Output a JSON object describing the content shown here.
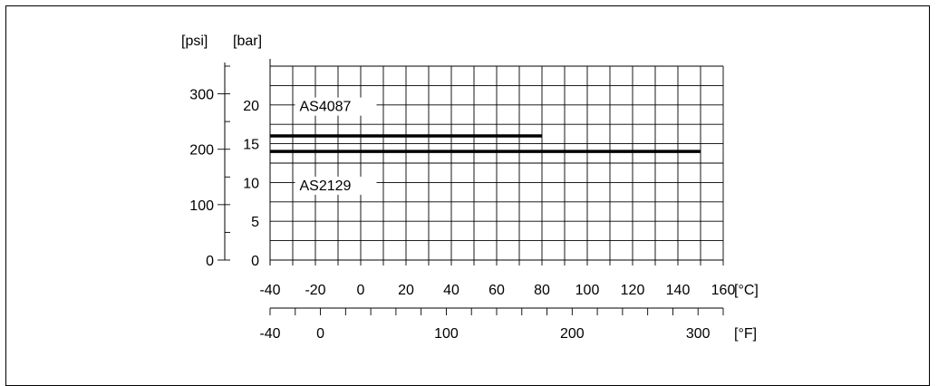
{
  "chart_data": {
    "type": "line",
    "title": "",
    "x_axis": {
      "unit": "[°C]",
      "min": -40,
      "max": 160,
      "ticks": [
        -40,
        -20,
        0,
        20,
        40,
        60,
        80,
        100,
        120,
        140,
        160
      ]
    },
    "x_axis_secondary": {
      "unit": "[°F]",
      "min": -40,
      "max": 320,
      "ticks": [
        -40,
        0,
        100,
        200,
        300
      ]
    },
    "y_axis": {
      "unit": "[bar]",
      "min": 0,
      "max": 25,
      "ticks": [
        0,
        5,
        10,
        15,
        20
      ]
    },
    "y_axis_secondary": {
      "unit": "[psi]",
      "min": 0,
      "max": 350,
      "ticks": [
        0,
        100,
        200,
        300
      ]
    },
    "grid": true,
    "series": [
      {
        "name": "AS4087",
        "x": [
          -40,
          80
        ],
        "y": [
          16,
          16
        ]
      },
      {
        "name": "AS2129",
        "x": [
          -40,
          150
        ],
        "y": [
          14,
          14
        ]
      }
    ]
  }
}
